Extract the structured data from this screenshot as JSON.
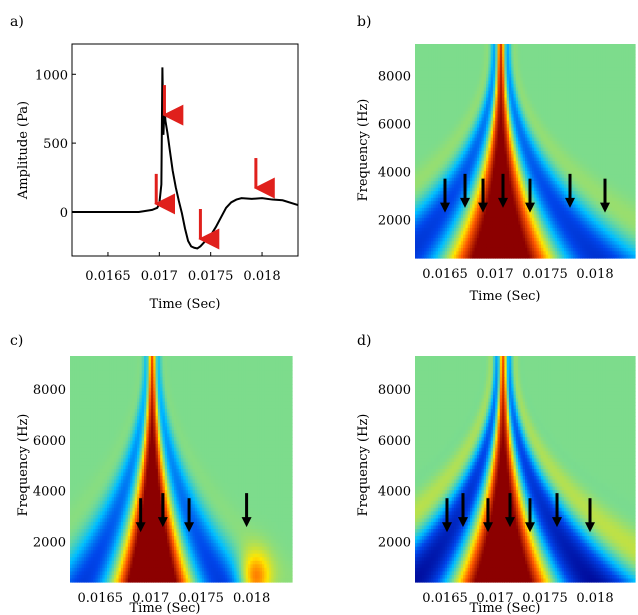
{
  "chart_data": [
    {
      "panel": "a)",
      "type": "line",
      "xlabel": "Time (Sec)",
      "ylabel": "Amplitude (Pa)",
      "xlim": [
        0.01615,
        0.01835
      ],
      "ylim": [
        -320,
        1220
      ],
      "xticks": [
        "0.0165",
        "0.017",
        "0.0175",
        "0.018"
      ],
      "yticks": [
        "0",
        "500",
        "1000"
      ],
      "series": [
        {
          "x": [
            0.01615,
            0.0165,
            0.0168,
            0.01693,
            0.01698,
            0.017,
            0.01702,
            0.01703,
            0.01704,
            0.01705,
            0.01706,
            0.01708,
            0.0171,
            0.01713,
            0.01716,
            0.01719,
            0.01722,
            0.01725,
            0.01728,
            0.01731,
            0.01734,
            0.01737,
            0.0174,
            0.01745,
            0.0175,
            0.01755,
            0.0176,
            0.01765,
            0.0177,
            0.01775,
            0.0178,
            0.0179,
            0.018,
            0.0181,
            0.0182,
            0.01835
          ],
          "y": [
            0,
            0,
            0,
            15,
            30,
            60,
            200,
            1050,
            560,
            760,
            660,
            570,
            460,
            300,
            180,
            80,
            -10,
            -120,
            -210,
            -250,
            -260,
            -265,
            -250,
            -210,
            -170,
            -110,
            -40,
            30,
            70,
            90,
            100,
            95,
            100,
            90,
            85,
            50
          ]
        }
      ],
      "arrows_x": [
        0.01697,
        0.01705,
        0.0174,
        0.01794
      ]
    },
    {
      "panel": "b)",
      "type": "heatmap",
      "xlabel": "Time (Sec)",
      "ylabel": "Frequency (Hz)",
      "xlim": [
        0.0162,
        0.0184
      ],
      "ylim": [
        400,
        9300
      ],
      "xticks": [
        "0.0165",
        "0.017",
        "0.0175",
        "0.018"
      ],
      "yticks": [
        "2000",
        "4000",
        "6000",
        "8000"
      ],
      "arrows_x": [
        0.0165,
        0.0167,
        0.01688,
        0.01708,
        0.01735,
        0.01775,
        0.0181
      ]
    },
    {
      "panel": "c)",
      "type": "heatmap",
      "xlabel": "Time (Sec)",
      "ylabel": "Frequency (Hz)",
      "xlim": [
        0.0162,
        0.0184
      ],
      "ylim": [
        400,
        9300
      ],
      "xticks": [
        "0.0165",
        "0.017",
        "0.0175",
        "0.018"
      ],
      "yticks": [
        "2000",
        "4000",
        "6000",
        "8000"
      ],
      "arrows_x": [
        0.0169,
        0.01712,
        0.01738,
        0.01795
      ]
    },
    {
      "panel": "d)",
      "type": "heatmap",
      "xlabel": "Time (Sec)",
      "ylabel": "Frequency (Hz)",
      "xlim": [
        0.0162,
        0.0184
      ],
      "ylim": [
        400,
        9300
      ],
      "xticks": [
        "0.0165",
        "0.017",
        "0.0175",
        "0.018"
      ],
      "yticks": [
        "2000",
        "4000",
        "6000",
        "8000"
      ],
      "arrows_x": [
        0.01652,
        0.01668,
        0.01693,
        0.01715,
        0.01735,
        0.01762,
        0.01795
      ]
    }
  ],
  "colors": {
    "arrow_a": "#e0201c",
    "arrow_bcd": "#000000",
    "background_map": "#7fd98a"
  }
}
